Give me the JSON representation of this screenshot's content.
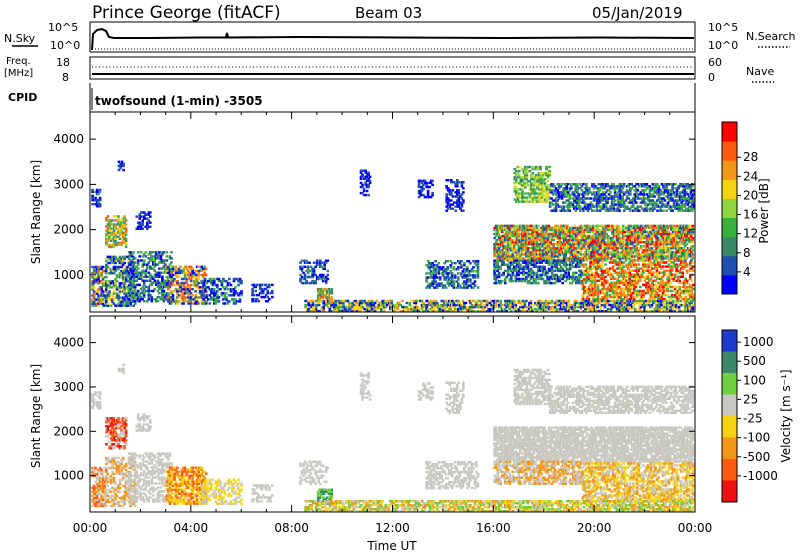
{
  "header": {
    "title": "Prince George (fitACF)",
    "beam": "Beam 03",
    "date": "05/Jan/2019"
  },
  "summary": {
    "left_top_label": "N.Sky",
    "left_top_scale": [
      "10^5",
      "10^0"
    ],
    "right_top_label": "N.Search",
    "right_top_scale": [
      "10^5",
      "10^0"
    ],
    "freq_label": [
      "Freq.",
      "[MHz]"
    ],
    "freq_scale": [
      "18",
      "8"
    ],
    "nave_label": "Nave",
    "nave_scale": [
      "60",
      "0"
    ],
    "cpid_label": "CPID",
    "cpid_text": "twofsound (1-min)  -3505"
  },
  "chart_data": [
    {
      "type": "heatmap",
      "name": "power-panel",
      "ylabel": "Slant Range [km]",
      "xlabel": "",
      "xlim": [
        0,
        24
      ],
      "ylim": [
        180,
        4600
      ],
      "yticks": [
        "1000",
        "2000",
        "3000",
        "4000"
      ],
      "colorbar": {
        "label": "Power [dB]",
        "ticks": [
          "4",
          "8",
          "12",
          "16",
          "20",
          "24",
          "28"
        ],
        "colors": [
          "#0000ff",
          "#1f4fb0",
          "#3a8a6a",
          "#38b03c",
          "#8fd640",
          "#f4d410",
          "#f29618",
          "#ff5a10",
          "#ff0000"
        ]
      }
    },
    {
      "type": "heatmap",
      "name": "velocity-panel",
      "ylabel": "Slant Range [km]",
      "xlabel": "Time UT",
      "xlim": [
        0,
        24
      ],
      "ylim": [
        180,
        4600
      ],
      "xticks": [
        "00:00",
        "04:00",
        "08:00",
        "12:00",
        "16:00",
        "20:00",
        "00:00"
      ],
      "yticks": [
        "1000",
        "2000",
        "3000",
        "4000"
      ],
      "colorbar": {
        "label": "Velocity [m s⁻¹]",
        "ticks": [
          "1000",
          "500",
          "100",
          "25",
          "-25",
          "-100",
          "-500",
          "-1000"
        ],
        "colors": [
          "#1a3ccc",
          "#3a8a6a",
          "#6ecf3c",
          "#c8c8c0",
          "#f4d410",
          "#f29618",
          "#ff5a10",
          "#ee1010"
        ]
      }
    }
  ]
}
